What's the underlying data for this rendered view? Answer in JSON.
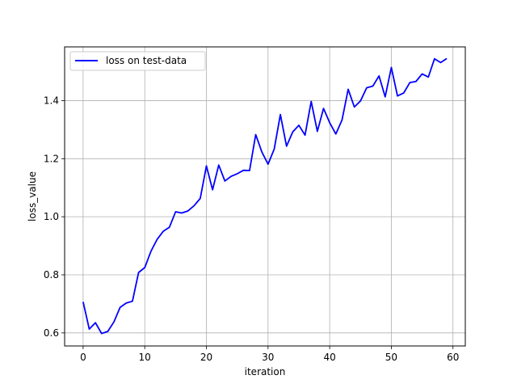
{
  "chart_data": {
    "type": "line",
    "title": "",
    "xlabel": "iteration",
    "ylabel": "loss_value",
    "xlim": [
      -3,
      62
    ],
    "ylim": [
      0.555,
      1.585
    ],
    "x_ticks": [
      0,
      10,
      20,
      30,
      40,
      50,
      60
    ],
    "y_ticks": [
      0.6,
      0.8,
      1.0,
      1.2,
      1.4
    ],
    "x_tick_labels": [
      "0",
      "10",
      "20",
      "30",
      "40",
      "50",
      "60"
    ],
    "y_tick_labels": [
      "0.6",
      "0.8",
      "1.0",
      "1.2",
      "1.4"
    ],
    "grid": true,
    "legend_position": "top-left",
    "series": [
      {
        "name": "loss on test-data",
        "color": "#0000ff",
        "x": [
          0,
          1,
          2,
          3,
          4,
          5,
          6,
          7,
          8,
          9,
          10,
          11,
          12,
          13,
          14,
          15,
          16,
          17,
          18,
          19,
          20,
          21,
          22,
          23,
          24,
          25,
          26,
          27,
          28,
          29,
          30,
          31,
          32,
          33,
          34,
          35,
          36,
          37,
          38,
          39,
          40,
          41,
          42,
          43,
          44,
          45,
          46,
          47,
          48,
          49,
          50,
          51,
          52,
          53,
          54,
          55,
          56,
          57,
          58,
          59
        ],
        "values": [
          0.707,
          0.613,
          0.635,
          0.598,
          0.605,
          0.638,
          0.688,
          0.703,
          0.709,
          0.808,
          0.825,
          0.881,
          0.922,
          0.95,
          0.964,
          1.017,
          1.013,
          1.02,
          1.038,
          1.063,
          1.175,
          1.093,
          1.178,
          1.123,
          1.139,
          1.148,
          1.16,
          1.159,
          1.283,
          1.223,
          1.181,
          1.233,
          1.352,
          1.243,
          1.292,
          1.315,
          1.281,
          1.397,
          1.294,
          1.373,
          1.324,
          1.285,
          1.333,
          1.439,
          1.378,
          1.399,
          1.444,
          1.45,
          1.485,
          1.413,
          1.514,
          1.416,
          1.426,
          1.462,
          1.466,
          1.492,
          1.481,
          1.544,
          1.531,
          1.545
        ]
      }
    ]
  }
}
